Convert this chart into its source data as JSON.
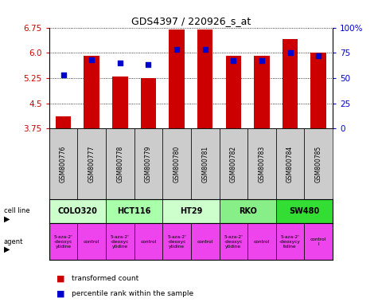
{
  "title": "GDS4397 / 220926_s_at",
  "samples": [
    "GSM800776",
    "GSM800777",
    "GSM800778",
    "GSM800779",
    "GSM800780",
    "GSM800781",
    "GSM800782",
    "GSM800783",
    "GSM800784",
    "GSM800785"
  ],
  "bar_values": [
    4.1,
    5.9,
    5.3,
    5.25,
    6.7,
    6.7,
    5.9,
    5.9,
    6.4,
    6.0
  ],
  "dot_values": [
    53,
    68,
    65,
    63,
    78,
    78,
    67,
    67,
    75,
    72
  ],
  "ylim_left": [
    3.75,
    6.75
  ],
  "ylim_right": [
    0,
    100
  ],
  "yticks_left": [
    3.75,
    4.5,
    5.25,
    6.0,
    6.75
  ],
  "yticks_right": [
    0,
    25,
    50,
    75,
    100
  ],
  "ytick_labels_right": [
    "0",
    "25",
    "50",
    "75",
    "100%"
  ],
  "bar_color": "#cc0000",
  "dot_color": "#0000cc",
  "cell_lines": [
    {
      "label": "COLO320",
      "start": 0,
      "end": 2,
      "color": "#ccffcc"
    },
    {
      "label": "HCT116",
      "start": 2,
      "end": 4,
      "color": "#aaffaa"
    },
    {
      "label": "HT29",
      "start": 4,
      "end": 6,
      "color": "#ccffcc"
    },
    {
      "label": "RKO",
      "start": 6,
      "end": 8,
      "color": "#88ee88"
    },
    {
      "label": "SW480",
      "start": 8,
      "end": 10,
      "color": "#33dd33"
    }
  ],
  "agents": [
    {
      "label": "5-aza-2'\n-deoxyc\nytidine",
      "start": 0,
      "end": 1
    },
    {
      "label": "control",
      "start": 1,
      "end": 2
    },
    {
      "label": "5-aza-2'\n-deoxyc\nytidine",
      "start": 2,
      "end": 3
    },
    {
      "label": "control",
      "start": 3,
      "end": 4
    },
    {
      "label": "5-aza-2'\n-deoxyc\nytidine",
      "start": 4,
      "end": 5
    },
    {
      "label": "control",
      "start": 5,
      "end": 6
    },
    {
      "label": "5-aza-2'\n-deoxyc\nytidine",
      "start": 6,
      "end": 7
    },
    {
      "label": "control",
      "start": 7,
      "end": 8
    },
    {
      "label": "5-aza-2'\n-deoxycy\ntidine",
      "start": 8,
      "end": 9
    },
    {
      "label": "control\nl",
      "start": 9,
      "end": 10
    }
  ],
  "agent_color": "#ee44ee",
  "legend_bar_label": "transformed count",
  "legend_dot_label": "percentile rank within the sample",
  "background_color": "#ffffff",
  "sample_bg_color": "#cccccc"
}
